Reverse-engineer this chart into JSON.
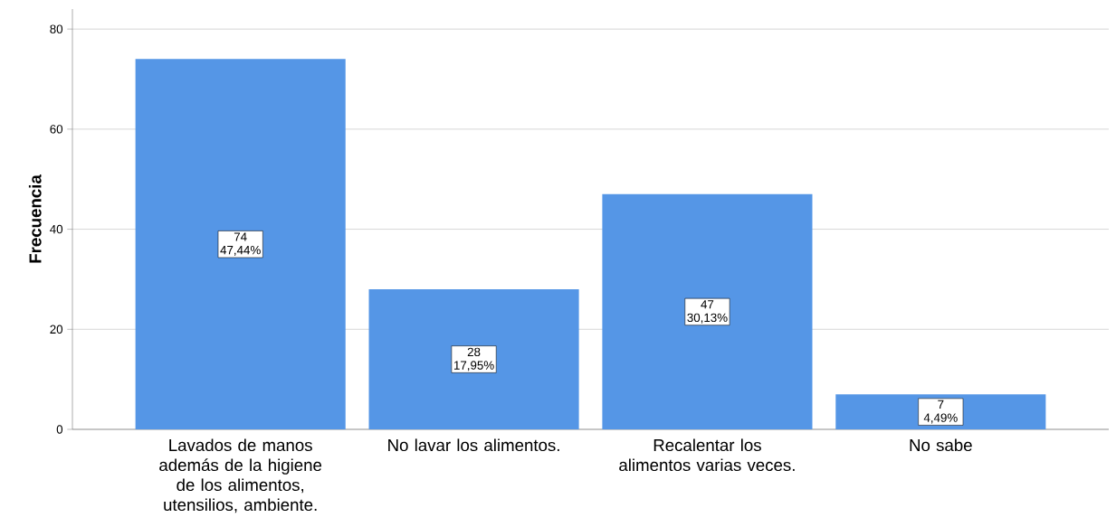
{
  "chart_data": {
    "type": "bar",
    "ylabel": "Frecuencia",
    "categories": [
      "Lavados de manos además de la higiene de los alimentos, utensilios, ambiente.",
      "No lavar los alimentos.",
      "Recalentar los alimentos varias veces.",
      "No sabe"
    ],
    "values": [
      74,
      28,
      47,
      7
    ],
    "value_labels": [
      "74 47,44%",
      "28 17,95%",
      "47 30,13%",
      "7 4,49%"
    ],
    "color": "#5596e6",
    "ylim": [
      0,
      84
    ],
    "yticks": [
      0,
      20,
      40,
      60,
      80
    ],
    "grid": "y"
  }
}
